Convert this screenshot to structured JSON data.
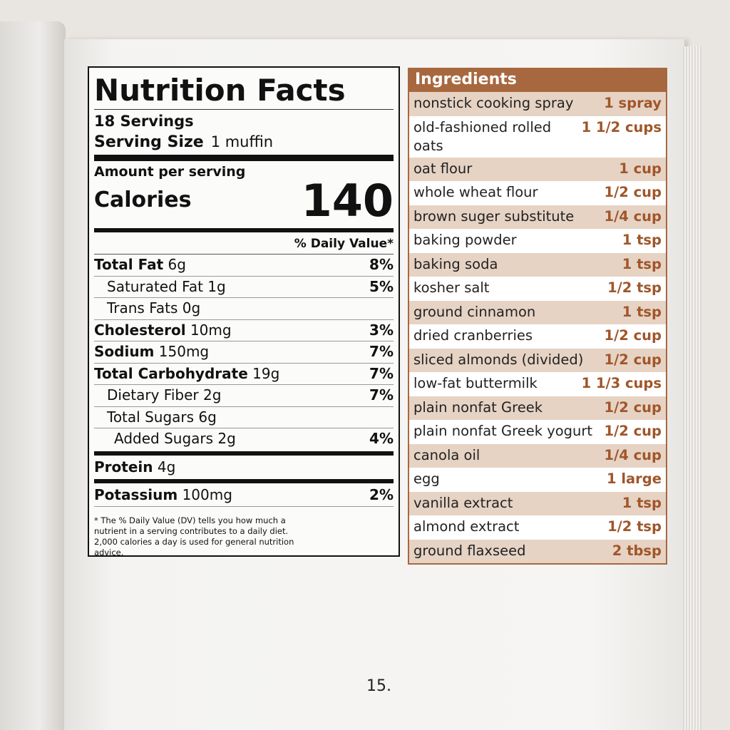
{
  "nutrition": {
    "title": "Nutrition Facts",
    "servings": "18 Servings",
    "serving_size_label": "Serving Size",
    "serving_size": "1 muffin",
    "amount_per_serving": "Amount per serving",
    "calories_label": "Calories",
    "calories": "140",
    "daily_value_header": "% Daily Value*",
    "rows": [
      {
        "name": "Total Fat",
        "amount": "6g",
        "dv": "8%"
      },
      {
        "name": "Saturated Fat",
        "amount": "1g",
        "dv": "5%"
      },
      {
        "name": "Trans Fats",
        "amount": "0g"
      },
      {
        "name": "Cholesterol",
        "amount": "10mg",
        "dv": "3%"
      },
      {
        "name": "Sodium",
        "amount": "150mg",
        "dv": "7%"
      },
      {
        "name": "Total Carbohydrate",
        "amount": "19g",
        "dv": "7%"
      },
      {
        "name": "Dietary Fiber",
        "amount": "2g",
        "dv": "7%"
      },
      {
        "name": "Total Sugars",
        "amount": "6g"
      },
      {
        "name": "Added Sugars",
        "amount": "2g",
        "dv": "4%"
      },
      {
        "name": "Protein",
        "amount": "4g"
      },
      {
        "name": "Potassium",
        "amount": "100mg",
        "dv": "2%"
      }
    ],
    "footnote": "* The % Daily Value (DV) tells you how much a nutrient in a serving contributes to a daily diet. 2,000 calories a day is used for general nutrition advice."
  },
  "ingredients": {
    "title": "Ingredients",
    "rows": [
      {
        "name": "nonstick cooking spray",
        "amount": "1 spray"
      },
      {
        "name": "old-fashioned rolled oats",
        "amount": "1 1/2 cups"
      },
      {
        "name": "oat flour",
        "amount": "1 cup"
      },
      {
        "name": "whole wheat flour",
        "amount": "1/2 cup"
      },
      {
        "name": "brown suger substitute",
        "amount": "1/4 cup"
      },
      {
        "name": "baking powder",
        "amount": "1 tsp"
      },
      {
        "name": "baking soda",
        "amount": "1 tsp"
      },
      {
        "name": "kosher salt",
        "amount": "1/2 tsp"
      },
      {
        "name": "ground cinnamon",
        "amount": "1 tsp"
      },
      {
        "name": "dried cranberries",
        "amount": "1/2 cup"
      },
      {
        "name": "sliced almonds (divided)",
        "amount": "1/2 cup"
      },
      {
        "name": "low-fat buttermilk",
        "amount": "1 1/3 cups"
      },
      {
        "name": "plain nonfat Greek",
        "amount": "1/2 cup"
      },
      {
        "name": "plain nonfat Greek yogurt",
        "amount": "1/2 cup"
      },
      {
        "name": "canola oil",
        "amount": "1/4 cup"
      },
      {
        "name": "egg",
        "amount": "1 large"
      },
      {
        "name": "vanilla extract",
        "amount": "1 tsp"
      },
      {
        "name": "almond extract",
        "amount": "1/2 tsp"
      },
      {
        "name": "ground flaxseed",
        "amount": "2 tbsp"
      }
    ]
  },
  "page_number": "15."
}
